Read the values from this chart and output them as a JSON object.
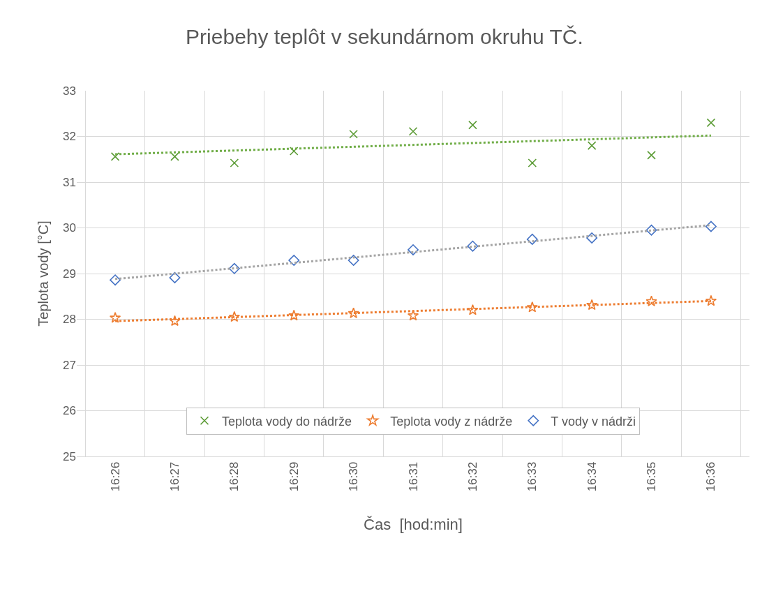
{
  "chart_data": {
    "type": "scatter",
    "title": "Priebehy teplôt v sekundárnom okruhu TČ.",
    "xlabel": "Čas  [hod:min]",
    "ylabel": "Teplota vody [°C]",
    "categories": [
      "16:26",
      "16:27",
      "16:28",
      "16:29",
      "16:30",
      "16:31",
      "16:32",
      "16:33",
      "16:34",
      "16:35",
      "16:36"
    ],
    "ylim": [
      25,
      33
    ],
    "yticks": [
      25,
      26,
      27,
      28,
      29,
      30,
      31,
      32,
      33
    ],
    "grid": true,
    "legend": "bottom",
    "series": [
      {
        "name": "Teplota vody do nádrže",
        "color": "#5b9b35",
        "marker": "cross",
        "values": [
          31.56,
          31.56,
          31.42,
          31.68,
          32.05,
          32.11,
          32.25,
          31.42,
          31.8,
          31.59,
          32.3
        ]
      },
      {
        "name": "Teplota vody z nádrže",
        "color": "#ed7d31",
        "marker": "star",
        "values": [
          28.03,
          27.96,
          28.05,
          28.08,
          28.13,
          28.08,
          28.2,
          28.26,
          28.31,
          28.39,
          28.4
        ]
      },
      {
        "name": "T vody v nádrži",
        "color": "#4472c4",
        "marker": "diamond",
        "values": [
          28.86,
          28.91,
          29.11,
          29.29,
          29.29,
          29.52,
          29.6,
          29.75,
          29.78,
          29.95,
          30.03
        ]
      },
      {
        "type": "line",
        "color": "#70ad47",
        "line_style": "dotted",
        "x": [
          "16:26",
          "16:36"
        ],
        "values": [
          31.61,
          32.02
        ]
      },
      {
        "type": "line",
        "color": "#ed7d31",
        "line_style": "dotted",
        "x": [
          "16:26",
          "16:36"
        ],
        "values": [
          27.96,
          28.4
        ]
      },
      {
        "type": "line",
        "color": "#a5a5a5",
        "line_style": "dotted",
        "x": [
          "16:26",
          "16:36"
        ],
        "values": [
          28.88,
          30.06
        ]
      }
    ]
  }
}
